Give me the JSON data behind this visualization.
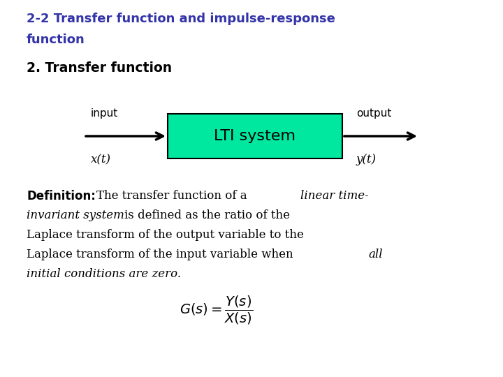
{
  "title_line1": "2-2 Transfer function and impulse-response",
  "title_line2": "function",
  "title_color": "#3333aa",
  "subtitle": "2. Transfer function",
  "subtitle_color": "#000000",
  "box_text": "LTI system",
  "box_facecolor": "#00e8a0",
  "box_edgecolor": "#000000",
  "input_label": "input",
  "input_var": "x(t)",
  "output_label": "output",
  "output_var": "y(t)",
  "bg_color": "#ffffff"
}
